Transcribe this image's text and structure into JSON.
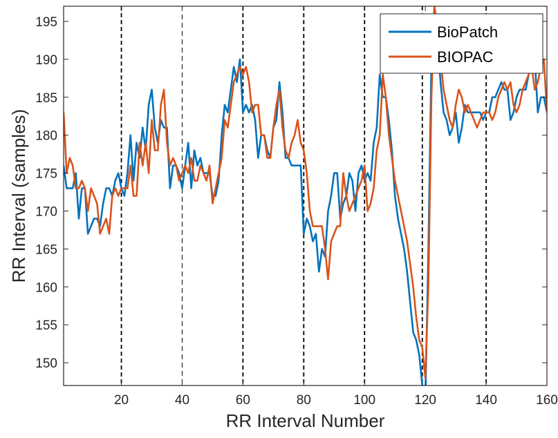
{
  "chart_data": {
    "type": "line",
    "title": "",
    "xlabel": "RR Interval Number",
    "ylabel": "RR Interval (samples)",
    "xlim": [
      1,
      160
    ],
    "ylim": [
      147,
      197
    ],
    "xticks": [
      20,
      40,
      60,
      80,
      100,
      120,
      140,
      160
    ],
    "yticks": [
      150,
      155,
      160,
      165,
      170,
      175,
      180,
      185,
      190,
      195
    ],
    "grid": false,
    "legend_position": "top-right",
    "vertical_markers": [
      {
        "x": 20,
        "style": "bold-dashed"
      },
      {
        "x": 40,
        "style": "thin-dashed"
      },
      {
        "x": 60,
        "style": "bold-dashed"
      },
      {
        "x": 80,
        "style": "bold-dashed"
      },
      {
        "x": 100,
        "style": "bold-dashed"
      },
      {
        "x": 119,
        "style": "bold-dashed"
      },
      {
        "x": 140,
        "style": "bold-dashed"
      }
    ],
    "series": [
      {
        "name": "BioPatch",
        "color": "#0072BD",
        "x": [
          1,
          2,
          3,
          4,
          5,
          6,
          7,
          8,
          9,
          10,
          11,
          12,
          13,
          14,
          15,
          16,
          17,
          18,
          19,
          20,
          21,
          22,
          23,
          24,
          25,
          26,
          27,
          28,
          29,
          30,
          31,
          32,
          33,
          34,
          35,
          36,
          37,
          38,
          39,
          40,
          41,
          42,
          43,
          44,
          45,
          46,
          47,
          48,
          49,
          50,
          51,
          52,
          53,
          54,
          55,
          56,
          57,
          58,
          59,
          60,
          61,
          62,
          63,
          64,
          65,
          66,
          67,
          68,
          69,
          70,
          71,
          72,
          73,
          74,
          75,
          76,
          77,
          78,
          79,
          80,
          81,
          82,
          83,
          84,
          85,
          86,
          87,
          88,
          89,
          90,
          91,
          92,
          93,
          94,
          95,
          96,
          97,
          98,
          99,
          100,
          101,
          102,
          103,
          104,
          105,
          106,
          107,
          108,
          109,
          110,
          111,
          112,
          113,
          114,
          115,
          116,
          117,
          118,
          119,
          120,
          121,
          122,
          123,
          124,
          125,
          126,
          127,
          128,
          129,
          130,
          131,
          132,
          133,
          134,
          135,
          136,
          137,
          138,
          139,
          140,
          141,
          142,
          143,
          144,
          145,
          146,
          147,
          148,
          149,
          150,
          151,
          152,
          153,
          154,
          155,
          156,
          157,
          158,
          159,
          160
        ],
        "values": [
          176,
          173,
          173,
          173,
          175,
          169,
          173,
          173,
          167,
          168,
          169,
          169,
          168,
          171,
          173,
          173,
          172,
          174,
          175,
          173,
          172,
          175,
          180,
          174,
          179,
          177,
          181,
          178,
          184,
          186,
          181,
          179,
          182,
          181,
          181,
          173,
          176,
          176,
          175,
          173,
          176,
          179,
          173,
          178,
          176,
          177,
          175,
          175,
          175,
          172,
          172,
          174,
          180,
          184,
          183,
          186,
          189,
          187,
          190,
          183,
          184,
          183,
          184,
          182,
          177,
          180,
          180,
          178,
          177,
          181,
          182,
          187,
          183,
          177,
          177,
          176,
          176,
          176,
          176,
          167,
          169,
          168,
          166,
          167,
          162,
          165,
          164,
          170,
          172,
          175,
          175,
          169,
          171,
          172,
          175,
          174,
          170,
          175,
          176,
          174,
          175,
          174,
          179,
          181,
          188,
          185,
          185,
          182,
          178,
          172,
          169,
          167,
          165,
          162,
          158,
          154,
          153,
          151,
          147,
          145,
          165,
          190,
          197,
          192,
          187,
          183,
          182,
          180,
          181,
          183,
          179,
          181,
          184,
          183,
          183,
          183,
          183,
          183,
          182,
          183,
          183,
          185,
          185,
          186,
          187,
          186,
          186,
          182,
          183,
          185,
          186,
          186,
          186,
          188,
          190,
          190,
          183,
          185,
          185,
          183
        ]
      },
      {
        "name": "BIOPAC",
        "color": "#D95319",
        "x": [
          1,
          2,
          3,
          4,
          5,
          6,
          7,
          8,
          9,
          10,
          11,
          12,
          13,
          14,
          15,
          16,
          17,
          18,
          19,
          20,
          21,
          22,
          23,
          24,
          25,
          26,
          27,
          28,
          29,
          30,
          31,
          32,
          33,
          34,
          35,
          36,
          37,
          38,
          39,
          40,
          41,
          42,
          43,
          44,
          45,
          46,
          47,
          48,
          49,
          50,
          51,
          52,
          53,
          54,
          55,
          56,
          57,
          58,
          59,
          60,
          61,
          62,
          63,
          64,
          65,
          66,
          67,
          68,
          69,
          70,
          71,
          72,
          73,
          74,
          75,
          76,
          77,
          78,
          79,
          80,
          81,
          82,
          83,
          84,
          85,
          86,
          87,
          88,
          89,
          90,
          91,
          92,
          93,
          94,
          95,
          96,
          97,
          98,
          99,
          100,
          101,
          102,
          103,
          104,
          105,
          106,
          107,
          108,
          109,
          110,
          111,
          112,
          113,
          114,
          115,
          116,
          117,
          118,
          119,
          120,
          121,
          122,
          123,
          124,
          125,
          126,
          127,
          128,
          129,
          130,
          131,
          132,
          133,
          134,
          135,
          136,
          137,
          138,
          139,
          140,
          141,
          142,
          143,
          144,
          145,
          146,
          147,
          148,
          149,
          150,
          151,
          152,
          153,
          154,
          155,
          156,
          157,
          158,
          159,
          160
        ],
        "values": [
          183,
          175,
          177,
          176,
          173,
          173,
          174,
          173,
          170,
          173,
          172,
          171,
          167,
          168,
          169,
          167,
          172,
          173,
          172,
          173,
          173,
          173,
          176,
          172,
          172,
          179,
          176,
          179,
          175,
          182,
          178,
          178,
          184,
          186,
          179,
          176,
          177,
          176,
          174,
          175,
          176,
          175,
          177,
          174,
          174,
          176,
          175,
          174,
          176,
          171,
          173,
          175,
          177,
          182,
          181,
          184,
          187,
          188,
          189,
          188,
          189,
          187,
          183,
          184,
          184,
          180,
          180,
          177,
          177,
          181,
          184,
          186,
          181,
          178,
          177,
          179,
          180,
          182,
          179,
          178,
          175,
          170,
          168,
          168,
          168,
          168,
          165,
          161,
          166,
          167,
          168,
          168,
          175,
          172,
          170,
          171,
          172,
          173,
          174,
          176,
          170,
          171,
          173,
          178,
          180,
          188,
          185,
          180,
          177,
          174,
          172,
          170,
          168,
          166,
          163,
          160,
          156,
          153,
          152,
          148,
          160,
          185,
          197,
          194,
          190,
          186,
          184,
          182,
          181,
          184,
          186,
          185,
          183,
          184,
          183,
          182,
          181,
          182,
          183,
          183,
          183,
          182,
          183,
          185,
          186,
          187,
          186,
          187,
          184,
          183,
          184,
          186,
          187,
          188,
          189,
          186,
          187,
          189,
          190,
          183
        ]
      }
    ]
  }
}
